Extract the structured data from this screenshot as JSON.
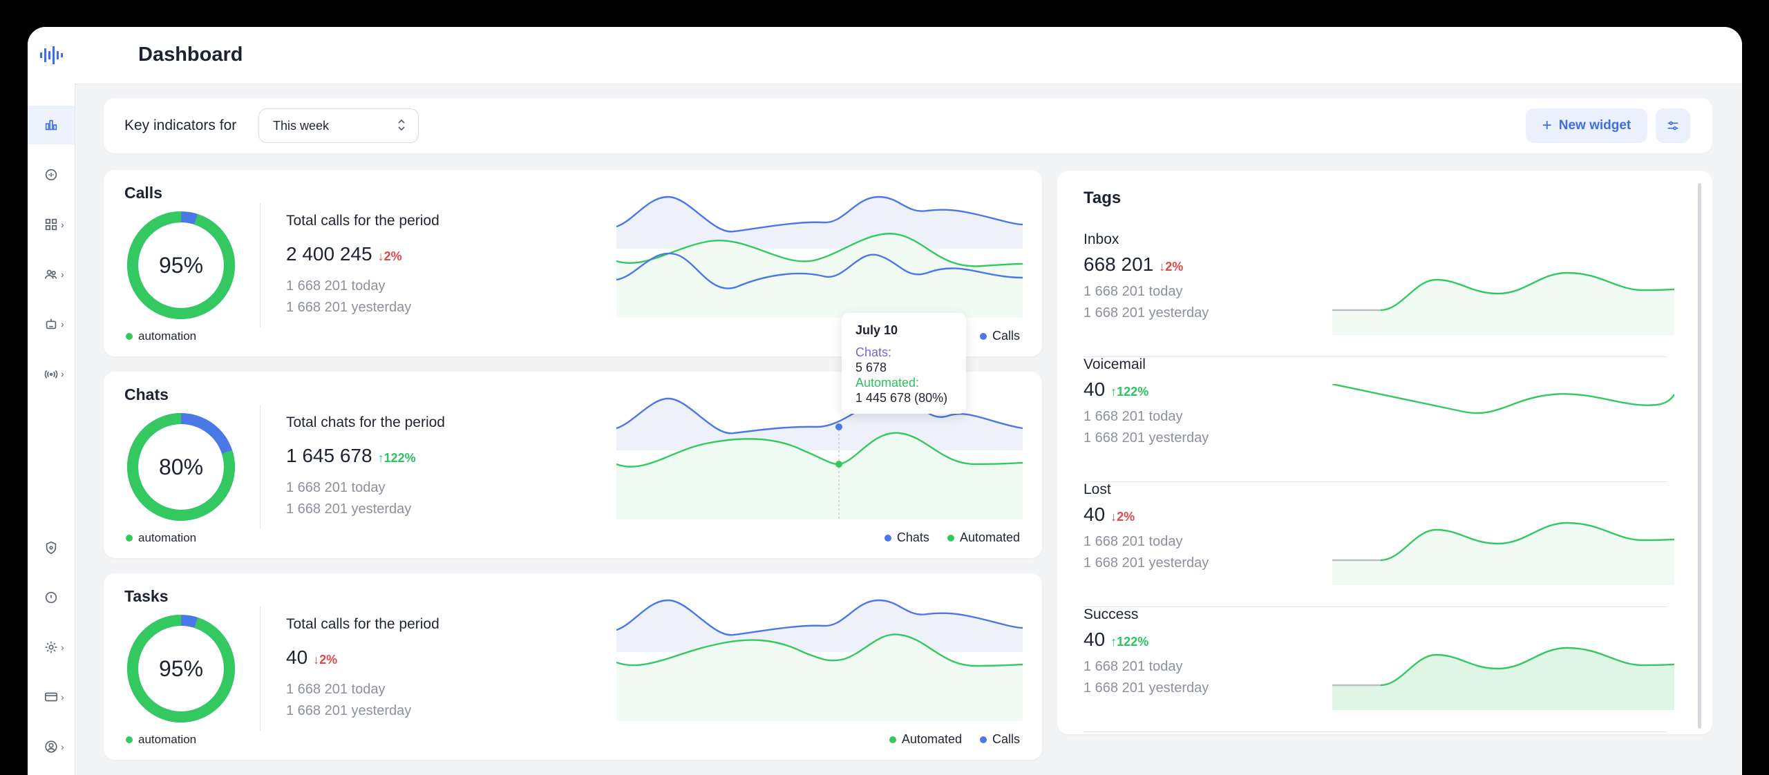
{
  "header": {
    "title": "Dashboard"
  },
  "filter": {
    "label": "Key indicators for",
    "period": "This week",
    "new_widget": "New widget"
  },
  "cards": [
    {
      "title": "Calls",
      "percent": "95%",
      "automation_share": 0.95,
      "legend": "automation",
      "period_label": "Total calls for the period",
      "total": "2 400 245",
      "delta": "2%",
      "delta_dir": "down",
      "today": "1 668 201 today",
      "yesterday": "1 668 201 yesterday",
      "chart_legend": [
        {
          "name": "Calls",
          "color": "#4a78e6"
        }
      ]
    },
    {
      "title": "Chats",
      "percent": "80%",
      "automation_share": 0.8,
      "legend": "automation",
      "period_label": "Total chats for the period",
      "total": "1 645 678",
      "delta": "122%",
      "delta_dir": "up",
      "today": "1 668 201 today",
      "yesterday": "1 668 201 yesterday",
      "chart_legend": [
        {
          "name": "Chats",
          "color": "#4a78e6"
        },
        {
          "name": "Automated",
          "color": "#34c960"
        }
      ]
    },
    {
      "title": "Tasks",
      "percent": "95%",
      "automation_share": 0.95,
      "legend": "automation",
      "period_label": "Total calls for the period",
      "total": "40",
      "delta": "2%",
      "delta_dir": "down",
      "today": "1 668 201 today",
      "yesterday": "1 668 201 yesterday",
      "chart_legend": [
        {
          "name": "Automated",
          "color": "#34c960"
        },
        {
          "name": "Calls",
          "color": "#4a78e6"
        }
      ]
    }
  ],
  "tooltip": {
    "date": "July 10",
    "chats_label": "Chats:",
    "chats_value": "5 678",
    "automated_label": "Automated:",
    "automated_value": "1 445 678 (80%)"
  },
  "tags": {
    "title": "Tags",
    "items": [
      {
        "name": "Inbox",
        "value": "668 201",
        "delta": "2%",
        "delta_dir": "down",
        "today": "1 668 201 today",
        "yesterday": "1 668 201 yesterday"
      },
      {
        "name": "Voicemail",
        "value": "40",
        "delta": "122%",
        "delta_dir": "up",
        "today": "1 668 201 today",
        "yesterday": "1 668 201 yesterday"
      },
      {
        "name": "Lost",
        "value": "40",
        "delta": "2%",
        "delta_dir": "down",
        "today": "1 668 201 today",
        "yesterday": "1 668 201 yesterday"
      },
      {
        "name": "Success",
        "value": "40",
        "delta": "122%",
        "delta_dir": "up",
        "today": "1 668 201 today",
        "yesterday": "1 668 201 yesterday"
      }
    ]
  },
  "colors": {
    "accent": "#3d6fe0",
    "green": "#34c960",
    "blue": "#4a78e6",
    "red": "#e04848"
  }
}
